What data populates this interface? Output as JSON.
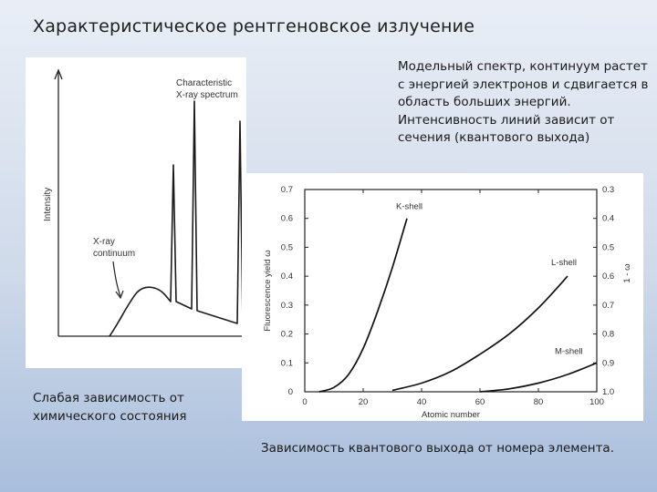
{
  "slide": {
    "title": "Характеристическое рентгеновское излучение",
    "right_description": "Модельный спектр, континуум растет с энергией электронов и сдвигается в область больших энергий. Интенсивность линий зависит от сечения (квантового выхода)",
    "left_caption": "Слабая зависимость от химического состояния",
    "bottom_caption": "Зависимость квантового выхода от  номера элемента."
  },
  "spectrum_figure": {
    "y_axis_label": "Intensity",
    "characteristic_label_line1": "Characteristic",
    "characteristic_label_line2": "X-ray spectrum",
    "continuum_label_line1": "X-ray",
    "continuum_label_line2": "continuum"
  },
  "chart_data": {
    "type": "line",
    "xlabel": "Atomic number",
    "ylabel": "Fluorescence yield ω",
    "right_ylabel": "1 - ω",
    "xlim": [
      0,
      100
    ],
    "ylim": [
      0,
      0.7
    ],
    "x_ticks": [
      "0",
      "20",
      "40",
      "60",
      "80",
      "100"
    ],
    "y_ticks_left": [
      "0",
      "0.1",
      "0.2",
      "0.3",
      "0.4",
      "0.5",
      "0.6",
      "0.7"
    ],
    "y_ticks_right": [
      "1.0",
      "0.9",
      "0.8",
      "0.7",
      "0.6",
      "0.5",
      "0.4",
      "0.3"
    ],
    "series": [
      {
        "name": "K-shell",
        "x": [
          5,
          10,
          15,
          20,
          25,
          30,
          35
        ],
        "y": [
          0.0,
          0.015,
          0.06,
          0.15,
          0.28,
          0.43,
          0.6
        ]
      },
      {
        "name": "L-shell",
        "x": [
          30,
          40,
          50,
          60,
          70,
          80,
          90
        ],
        "y": [
          0.005,
          0.03,
          0.07,
          0.13,
          0.2,
          0.29,
          0.4
        ]
      },
      {
        "name": "M-shell",
        "x": [
          60,
          70,
          80,
          90,
          100
        ],
        "y": [
          0.0,
          0.01,
          0.03,
          0.06,
          0.1
        ]
      }
    ]
  }
}
